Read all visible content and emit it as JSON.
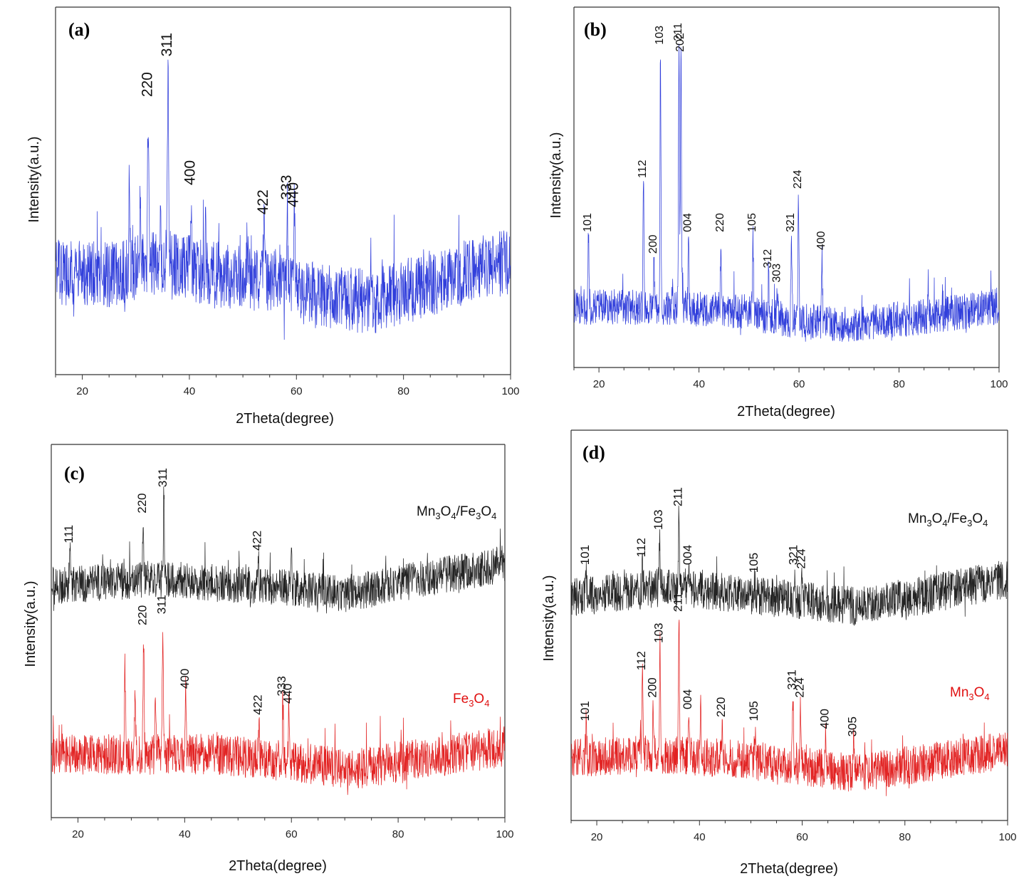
{
  "colors": {
    "blue": "#1f2fd8",
    "black": "#111111",
    "red": "#e01010",
    "axis": "#333333"
  },
  "chart_data": [
    {
      "id": "a",
      "type": "line",
      "panel_label": "(a)",
      "xlabel": "2Theta(degree)",
      "ylabel": "Intensity(a.u.)",
      "xlim": [
        15,
        100
      ],
      "xticks": [
        20,
        40,
        60,
        80,
        100
      ],
      "y_units": "arbitrary",
      "series": [
        {
          "color": "blue",
          "baseline": 0.27,
          "noise": 0.09,
          "drift": [
            [
              15,
              0.28
            ],
            [
              25,
              0.27
            ],
            [
              35,
              0.31
            ],
            [
              45,
              0.27
            ],
            [
              55,
              0.25
            ],
            [
              65,
              0.21
            ],
            [
              75,
              0.2
            ],
            [
              85,
              0.25
            ],
            [
              100,
              0.31
            ]
          ],
          "peaks": [
            {
              "hkl": "220",
              "x": 32.3,
              "y": 0.74
            },
            {
              "hkl": "311",
              "x": 36.0,
              "y": 0.85
            },
            {
              "hkl": "400",
              "x": 40.3,
              "y": 0.5
            },
            {
              "hkl": "422",
              "x": 53.9,
              "y": 0.42
            },
            {
              "hkl": "333",
              "x": 58.3,
              "y": 0.46
            },
            {
              "hkl": "440",
              "x": 59.6,
              "y": 0.44
            }
          ],
          "minor_peaks": [
            [
              28.8,
              0.56
            ],
            [
              30.8,
              0.46
            ],
            [
              34.6,
              0.48
            ],
            [
              43.0,
              0.4
            ],
            [
              45.5,
              0.35
            ],
            [
              50.8,
              0.4
            ],
            [
              56.0,
              0.32
            ]
          ]
        }
      ]
    },
    {
      "id": "b",
      "type": "line",
      "panel_label": "(b)",
      "xlabel": "2Theta(degree)",
      "ylabel": "Intensity(a.u.)",
      "xlim": [
        15,
        100
      ],
      "xticks": [
        20,
        40,
        60,
        80,
        100
      ],
      "y_units": "arbitrary",
      "series": [
        {
          "color": "blue",
          "baseline": 0.17,
          "noise": 0.05,
          "drift": [
            [
              15,
              0.17
            ],
            [
              45,
              0.16
            ],
            [
              60,
              0.13
            ],
            [
              70,
              0.12
            ],
            [
              85,
              0.14
            ],
            [
              100,
              0.17
            ]
          ],
          "peaks": [
            {
              "hkl": "101",
              "x": 17.9,
              "y": 0.36
            },
            {
              "hkl": "112",
              "x": 28.9,
              "y": 0.51
            },
            {
              "hkl": "200",
              "x": 31.0,
              "y": 0.3
            },
            {
              "hkl": "103",
              "x": 32.3,
              "y": 0.88
            },
            {
              "hkl": "211",
              "x": 36.0,
              "y": 0.89
            },
            {
              "hkl": "202",
              "x": 36.4,
              "y": 0.86
            },
            {
              "hkl": "004",
              "x": 37.9,
              "y": 0.36
            },
            {
              "hkl": "220",
              "x": 44.4,
              "y": 0.36
            },
            {
              "hkl": "105",
              "x": 50.8,
              "y": 0.36
            },
            {
              "hkl": "312",
              "x": 53.9,
              "y": 0.26
            },
            {
              "hkl": "303",
              "x": 55.7,
              "y": 0.22
            },
            {
              "hkl": "321",
              "x": 58.5,
              "y": 0.36
            },
            {
              "hkl": "224",
              "x": 59.9,
              "y": 0.48
            },
            {
              "hkl": "400",
              "x": 64.6,
              "y": 0.31
            }
          ],
          "minor_peaks": [
            [
              85.8,
              0.24
            ]
          ]
        }
      ]
    },
    {
      "id": "c",
      "type": "line",
      "panel_label": "(c)",
      "xlabel": "2Theta(degree)",
      "ylabel": "Intensity(a.u.)",
      "xlim": [
        15,
        100
      ],
      "xticks": [
        20,
        40,
        60,
        80,
        100
      ],
      "y_units": "arbitrary",
      "series": [
        {
          "name": "Mn3O4/Fe3O4",
          "color": "black",
          "baseline": 0.62,
          "noise": 0.05,
          "drift": [
            [
              15,
              0.62
            ],
            [
              35,
              0.64
            ],
            [
              55,
              0.62
            ],
            [
              70,
              0.6
            ],
            [
              85,
              0.64
            ],
            [
              100,
              0.68
            ]
          ],
          "peaks": [
            {
              "hkl": "111",
              "x": 18.5,
              "y": 0.72
            },
            {
              "hkl": "220",
              "x": 32.2,
              "y": 0.8
            },
            {
              "hkl": "311",
              "x": 36.1,
              "y": 0.87
            },
            {
              "hkl": "422",
              "x": 53.8,
              "y": 0.7
            }
          ],
          "minor_peaks": [
            [
              60.0,
              0.7
            ]
          ]
        },
        {
          "name": "Fe3O4",
          "color": "red",
          "baseline": 0.16,
          "noise": 0.055,
          "drift": [
            [
              15,
              0.17
            ],
            [
              30,
              0.17
            ],
            [
              45,
              0.17
            ],
            [
              60,
              0.15
            ],
            [
              72,
              0.13
            ],
            [
              85,
              0.16
            ],
            [
              100,
              0.19
            ]
          ],
          "peaks": [
            {
              "hkl": "220",
              "x": 32.3,
              "y": 0.5
            },
            {
              "hkl": "311",
              "x": 35.9,
              "y": 0.53
            },
            {
              "hkl": "400",
              "x": 40.2,
              "y": 0.33
            },
            {
              "hkl": "422",
              "x": 53.9,
              "y": 0.26
            },
            {
              "hkl": "333",
              "x": 58.4,
              "y": 0.31
            },
            {
              "hkl": "440",
              "x": 59.5,
              "y": 0.29
            }
          ],
          "minor_peaks": [
            [
              28.8,
              0.4
            ],
            [
              30.7,
              0.32
            ],
            [
              34.5,
              0.33
            ]
          ]
        }
      ]
    },
    {
      "id": "d",
      "type": "line",
      "panel_label": "(d)",
      "xlabel": "2Theta(degree)",
      "ylabel": "Intensity(a.u.)",
      "xlim": [
        15,
        100
      ],
      "xticks": [
        20,
        40,
        60,
        80,
        100
      ],
      "y_units": "arbitrary",
      "series": [
        {
          "name": "Mn3O4/Fe3O4",
          "color": "black",
          "baseline": 0.57,
          "noise": 0.05,
          "drift": [
            [
              15,
              0.57
            ],
            [
              35,
              0.6
            ],
            [
              55,
              0.57
            ],
            [
              70,
              0.55
            ],
            [
              85,
              0.58
            ],
            [
              100,
              0.62
            ]
          ],
          "peaks": [
            {
              "hkl": "101",
              "x": 17.9,
              "y": 0.64
            },
            {
              "hkl": "112",
              "x": 28.9,
              "y": 0.66
            },
            {
              "hkl": "103",
              "x": 32.2,
              "y": 0.73
            },
            {
              "hkl": "211",
              "x": 36.0,
              "y": 0.79
            },
            {
              "hkl": "004",
              "x": 37.9,
              "y": 0.64
            },
            {
              "hkl": "105",
              "x": 50.8,
              "y": 0.62
            },
            {
              "hkl": "321",
              "x": 58.5,
              "y": 0.64
            },
            {
              "hkl": "224",
              "x": 60.0,
              "y": 0.63
            }
          ],
          "minor_peaks": []
        },
        {
          "name": "Mn3O4",
          "color": "red",
          "baseline": 0.15,
          "noise": 0.05,
          "drift": [
            [
              15,
              0.16
            ],
            [
              30,
              0.17
            ],
            [
              45,
              0.16
            ],
            [
              60,
              0.14
            ],
            [
              70,
              0.12
            ],
            [
              85,
              0.15
            ],
            [
              100,
              0.18
            ]
          ],
          "peaks": [
            {
              "hkl": "101",
              "x": 17.9,
              "y": 0.24
            },
            {
              "hkl": "112",
              "x": 28.9,
              "y": 0.37
            },
            {
              "hkl": "200",
              "x": 31.0,
              "y": 0.3
            },
            {
              "hkl": "103",
              "x": 32.3,
              "y": 0.44
            },
            {
              "hkl": "211",
              "x": 36.0,
              "y": 0.52
            },
            {
              "hkl": "004",
              "x": 37.9,
              "y": 0.27
            },
            {
              "hkl": "220",
              "x": 44.4,
              "y": 0.25
            },
            {
              "hkl": "105",
              "x": 50.8,
              "y": 0.24
            },
            {
              "hkl": "321",
              "x": 58.2,
              "y": 0.32
            },
            {
              "hkl": "224",
              "x": 59.7,
              "y": 0.3
            },
            {
              "hkl": "400",
              "x": 64.6,
              "y": 0.22
            },
            {
              "hkl": "305",
              "x": 70.0,
              "y": 0.2
            }
          ],
          "minor_peaks": [
            [
              40.2,
              0.28
            ]
          ]
        }
      ]
    }
  ]
}
